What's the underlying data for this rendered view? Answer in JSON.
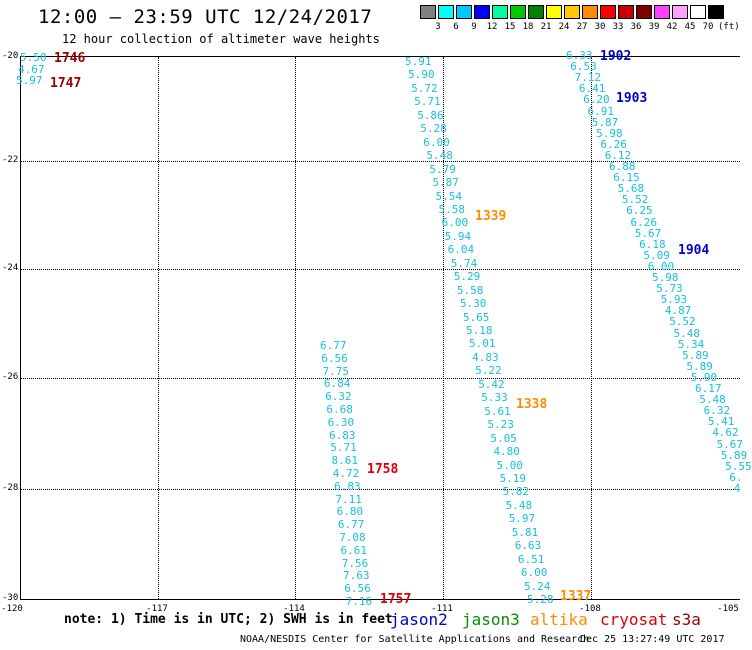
{
  "title": "12:00 – 23:59 UTC 12/24/2017",
  "subtitle": "12 hour collection of altimeter wave heights",
  "legend_scale": {
    "unit": "(ft)",
    "labels": [
      "3",
      "6",
      "9",
      "12",
      "15",
      "18",
      "21",
      "24",
      "27",
      "30",
      "33",
      "36",
      "39",
      "42",
      "45",
      "70"
    ],
    "colors": [
      "#808080",
      "#00ffff",
      "#00c8ff",
      "#0000ff",
      "#00ffa0",
      "#00c800",
      "#008000",
      "#ffff00",
      "#ffc800",
      "#ff8c00",
      "#ff0000",
      "#c80000",
      "#800000",
      "#ff40ff",
      "#ffa0ff",
      "#ffffff",
      "#000000"
    ]
  },
  "axes": {
    "y_labels": [
      "-20",
      "-22",
      "-24",
      "-26",
      "-28",
      "-30"
    ],
    "x_labels": [
      "-120",
      "-117",
      "-114",
      "-111",
      "-108",
      "-105"
    ]
  },
  "note": "note: 1) Time is in UTC; 2) SWH is in feet",
  "satellites": [
    {
      "name": "jason2",
      "color": "#0000cc"
    },
    {
      "name": "jason3",
      "color": "#009000"
    },
    {
      "name": "altika",
      "color": "#ff8c00"
    },
    {
      "name": "cryosat",
      "color": "#e00000"
    },
    {
      "name": "s3a",
      "color": "#990000"
    }
  ],
  "credit": "NOAA/NESDIS Center for Satellite Applications and Research",
  "timestamp": "Dec 25 13:27:49 UTC 2017",
  "tracks": [
    {
      "id": "track-1746",
      "values": [
        "5.50",
        "4.67",
        "5.97"
      ],
      "time_labels": [
        {
          "text": "1746",
          "color": "#990000"
        },
        {
          "text": "1747",
          "color": "#990000"
        }
      ]
    },
    {
      "id": "track-1339",
      "values": [
        "5.91",
        "5.90",
        "5.72",
        "5.71",
        "5.86",
        "5.28",
        "6.00",
        "5.48",
        "5.79",
        "5.87",
        "5.54",
        "5.58",
        "6.00",
        "5.94",
        "6.04",
        "5.74",
        "5.29",
        "5.58",
        "5.30",
        "5.65",
        "5.18",
        "5.01",
        "4.83",
        "5.22",
        "5.42",
        "5.33",
        "5.61",
        "5.23",
        "5.05",
        "4.80",
        "5.00",
        "5.19",
        "5.82",
        "5.48",
        "5.97",
        "5.81",
        "6.63",
        "6.51",
        "6.00",
        "5.24",
        "5.28"
      ],
      "time_labels": [
        {
          "text": "1339",
          "color": "#ff8c00"
        },
        {
          "text": "1338",
          "color": "#ff8c00"
        },
        {
          "text": "1337",
          "color": "#ff8c00"
        }
      ]
    },
    {
      "id": "track-1902",
      "values": [
        "6.33",
        "6.53",
        "7.12",
        "6.41",
        "6.20",
        "6.91",
        "5.87",
        "5.98",
        "6.26",
        "6.12",
        "6.88",
        "6.15",
        "5.68",
        "5.52",
        "6.25",
        "6.26",
        "5.67",
        "6.18",
        "5.09",
        "6.00",
        "5.98",
        "5.73",
        "5.93",
        "4.87",
        "5.52",
        "5.48",
        "5.34",
        "5.89",
        "5.89",
        "5.90",
        "6.17",
        "5.48",
        "6.32",
        "5.41",
        "4.62",
        "5.67",
        "5.89",
        "5.55",
        "6.",
        "4"
      ],
      "time_labels": [
        {
          "text": "1902",
          "color": "#0000cc"
        },
        {
          "text": "1903",
          "color": "#0000cc"
        },
        {
          "text": "1904",
          "color": "#0000cc"
        }
      ]
    },
    {
      "id": "track-1758",
      "values": [
        "6.77",
        "6.56",
        "7.75",
        "6.84",
        "6.32",
        "6.68",
        "6.30",
        "6.83",
        "5.71",
        "8.61",
        "4.72",
        "6.83",
        "7.11",
        "6.80",
        "6.77",
        "7.08",
        "6.61",
        "7.56",
        "7.63",
        "6.56",
        "7.16"
      ],
      "time_labels": [
        {
          "text": "1758",
          "color": "#e00000"
        },
        {
          "text": "1757",
          "color": "#e00000"
        }
      ]
    }
  ]
}
